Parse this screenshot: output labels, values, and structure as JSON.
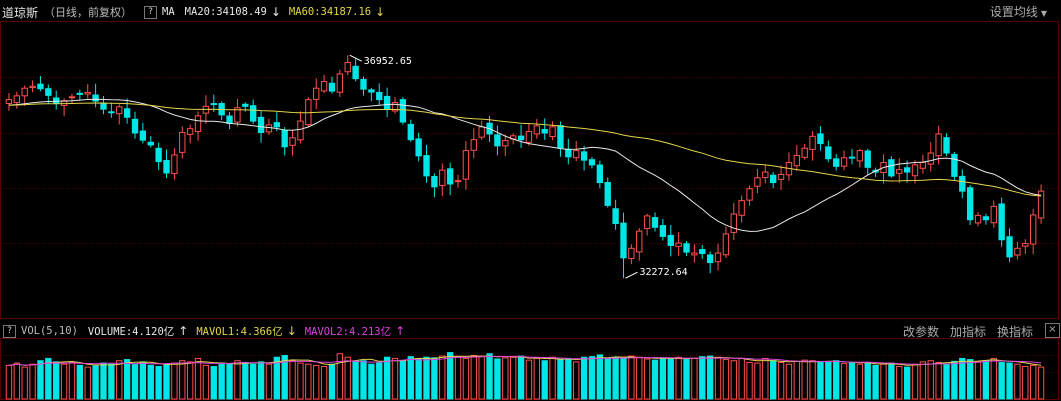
{
  "header": {
    "name": "道琼斯",
    "subtitle": "（日线，前复权）",
    "help_label": "?",
    "ma_label": "MA",
    "ma20_text": "MA20:34108.49",
    "ma20_arrow": "↓",
    "ma60_text": "MA60:34187.16",
    "ma60_arrow": "↓",
    "settings_label": "设置均线",
    "settings_caret": "▼"
  },
  "indicator": {
    "help_label": "?",
    "vol_label": "VOL(5,10)",
    "volume_text": "VOLUME:4.120亿",
    "volume_arrow": "↑",
    "mavol1_text": "MAVOL1:4.366亿",
    "mavol1_arrow": "↓",
    "mavol2_text": "MAVOL2:4.213亿",
    "mavol2_arrow": "↑",
    "actions": [
      "改参数",
      "加指标",
      "换指标"
    ],
    "close_label": "×"
  },
  "colors": {
    "up": "#ff4f4f",
    "down": "#00e5e5",
    "ma20": "#e8e8e8",
    "ma60": "#e3d64a",
    "mavol1": "#e3d64a",
    "mavol2": "#e040e0",
    "grid": "#5a0000"
  },
  "chart_data": {
    "type": "candlestick",
    "ylim": [
      31500,
      37650
    ],
    "annotations": [
      {
        "label": "36952.65",
        "value": 36952.65,
        "index": 43
      },
      {
        "label": "32272.64",
        "value": 32272.64,
        "index": 78
      }
    ],
    "closes": [
      36020,
      36100,
      36260,
      36300,
      36250,
      36110,
      35950,
      36000,
      36080,
      36130,
      36170,
      35990,
      35820,
      35750,
      35870,
      35650,
      35320,
      35170,
      35070,
      34720,
      34480,
      34860,
      35330,
      35410,
      35680,
      35880,
      35930,
      35700,
      35520,
      35850,
      35880,
      35570,
      35330,
      35490,
      35450,
      35030,
      35220,
      35570,
      36020,
      36260,
      36400,
      36200,
      36560,
      36800,
      36460,
      36240,
      36180,
      36020,
      35820,
      35960,
      35550,
      35180,
      34840,
      34420,
      34190,
      34540,
      34250,
      34320,
      34950,
      35180,
      35450,
      35300,
      35050,
      35160,
      35260,
      35180,
      35350,
      35470,
      35320,
      35450,
      35010,
      34820,
      34950,
      34750,
      34650,
      34280,
      33800,
      33420,
      32700,
      32900,
      33260,
      33580,
      33340,
      33150,
      32960,
      33010,
      32820,
      32800,
      32790,
      32600,
      32800,
      33200,
      33620,
      33900,
      34150,
      34380,
      34500,
      34280,
      34450,
      34700,
      34850,
      35000,
      35250,
      35100,
      34780,
      34620,
      34800,
      34800,
      34950,
      34600,
      34500,
      34700,
      34420,
      34550,
      34500,
      34650,
      34700,
      34900,
      35300,
      34900,
      34410,
      34100,
      33500,
      33590,
      33500,
      33780,
      33080,
      32720,
      32900,
      33000,
      33600,
      34100
    ],
    "volumes": [
      0.58,
      0.62,
      0.55,
      0.6,
      0.66,
      0.7,
      0.64,
      0.6,
      0.63,
      0.58,
      0.55,
      0.57,
      0.62,
      0.6,
      0.66,
      0.68,
      0.6,
      0.64,
      0.58,
      0.56,
      0.6,
      0.62,
      0.66,
      0.64,
      0.7,
      0.58,
      0.56,
      0.62,
      0.6,
      0.66,
      0.63,
      0.6,
      0.64,
      0.6,
      0.72,
      0.75,
      0.66,
      0.62,
      0.6,
      0.58,
      0.56,
      0.6,
      0.78,
      0.72,
      0.65,
      0.66,
      0.6,
      0.62,
      0.72,
      0.7,
      0.66,
      0.73,
      0.69,
      0.72,
      0.71,
      0.74,
      0.8,
      0.72,
      0.7,
      0.75,
      0.73,
      0.78,
      0.69,
      0.71,
      0.72,
      0.74,
      0.67,
      0.7,
      0.66,
      0.72,
      0.68,
      0.7,
      0.64,
      0.72,
      0.73,
      0.76,
      0.7,
      0.72,
      0.7,
      0.74,
      0.72,
      0.69,
      0.67,
      0.71,
      0.7,
      0.72,
      0.68,
      0.7,
      0.73,
      0.74,
      0.72,
      0.68,
      0.66,
      0.7,
      0.63,
      0.62,
      0.7,
      0.66,
      0.63,
      0.6,
      0.65,
      0.67,
      0.66,
      0.64,
      0.63,
      0.66,
      0.61,
      0.62,
      0.6,
      0.63,
      0.58,
      0.6,
      0.62,
      0.56,
      0.55,
      0.6,
      0.64,
      0.66,
      0.63,
      0.6,
      0.65,
      0.7,
      0.68,
      0.64,
      0.66,
      0.7,
      0.63,
      0.62,
      0.6,
      0.56,
      0.58,
      0.55
    ]
  }
}
